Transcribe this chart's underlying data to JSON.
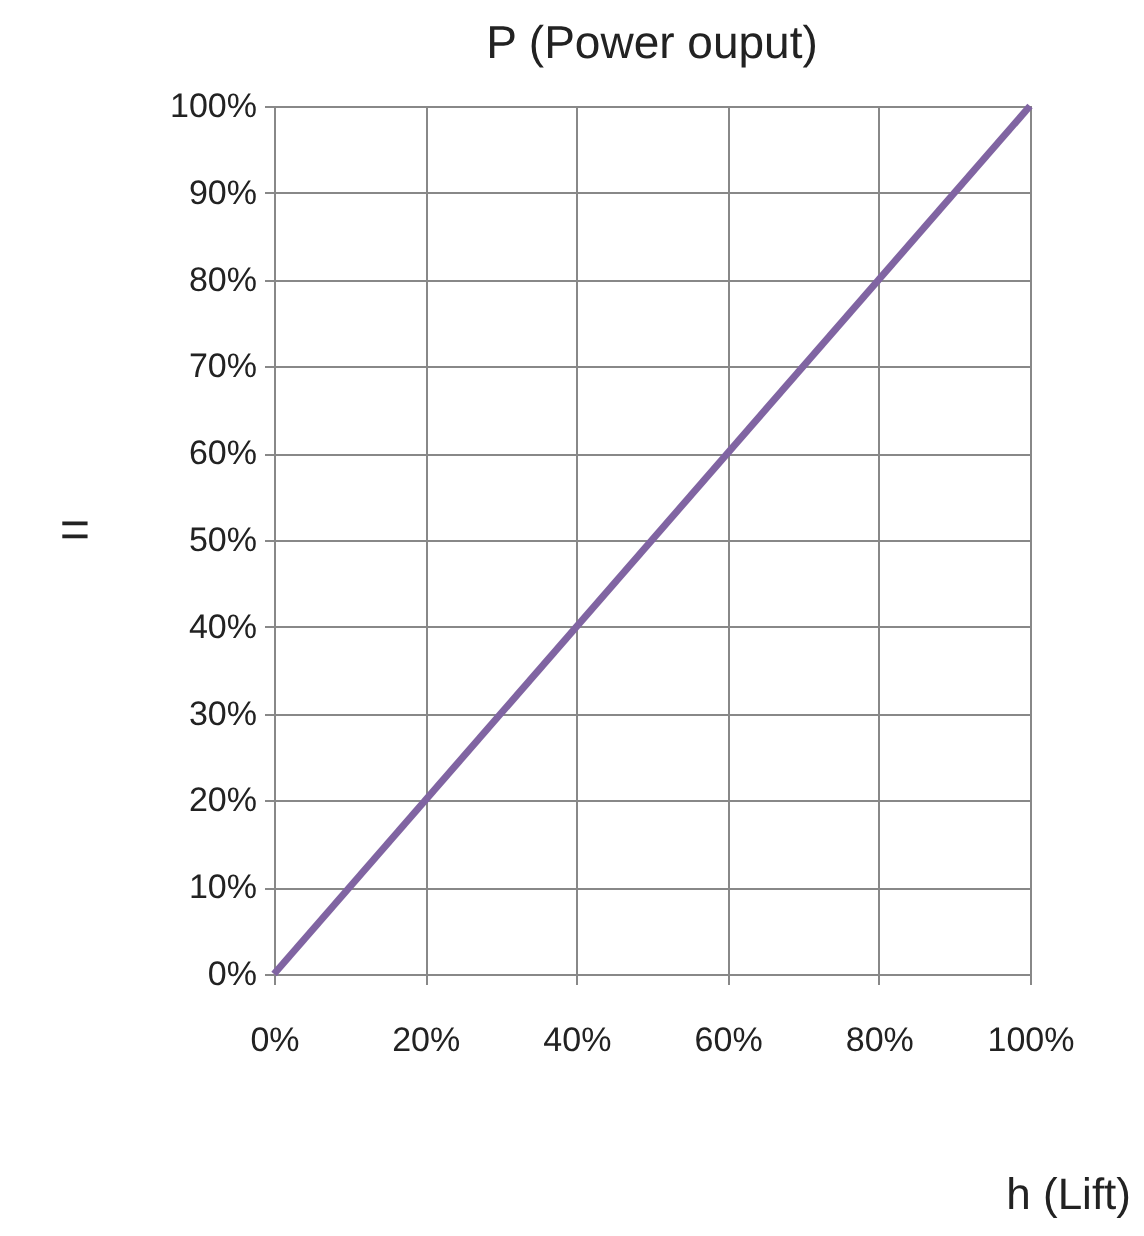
{
  "chart_data": {
    "type": "line",
    "title": "P (Power ouput)",
    "xlabel": "h (Lift)",
    "ylabel": "=",
    "x": [
      0,
      100
    ],
    "series": [
      {
        "color": "#8064a2",
        "values": [
          0,
          100
        ]
      }
    ],
    "xlim": [
      0,
      100
    ],
    "ylim": [
      0,
      100
    ],
    "xticks": [
      {
        "value": 0,
        "label": "0%"
      },
      {
        "value": 20,
        "label": "20%"
      },
      {
        "value": 40,
        "label": "40%"
      },
      {
        "value": 60,
        "label": "60%"
      },
      {
        "value": 80,
        "label": "80%"
      },
      {
        "value": 100,
        "label": "100%"
      }
    ],
    "yticks": [
      {
        "value": 0,
        "label": "0%"
      },
      {
        "value": 10,
        "label": "10%"
      },
      {
        "value": 20,
        "label": "20%"
      },
      {
        "value": 30,
        "label": "30%"
      },
      {
        "value": 40,
        "label": "40%"
      },
      {
        "value": 50,
        "label": "50%"
      },
      {
        "value": 60,
        "label": "60%"
      },
      {
        "value": 70,
        "label": "70%"
      },
      {
        "value": 80,
        "label": "80%"
      },
      {
        "value": 90,
        "label": "90%"
      },
      {
        "value": 100,
        "label": "100%"
      }
    ],
    "grid": true,
    "marker": "none",
    "line_style": "solid"
  }
}
